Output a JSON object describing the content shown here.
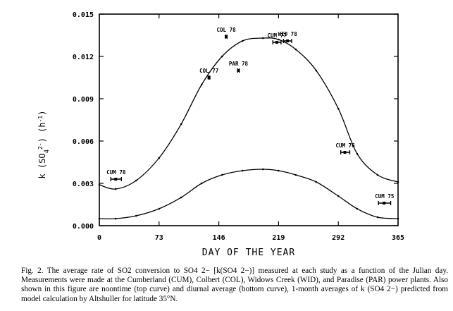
{
  "chart_data": {
    "type": "line",
    "title": "",
    "xlabel": "DAY OF THE YEAR",
    "ylabel": "k (SO4 2-) (h-1)",
    "xlim": [
      0,
      365
    ],
    "ylim": [
      0.0,
      0.015
    ],
    "xticks": [
      0,
      73,
      146,
      219,
      292,
      365
    ],
    "xtick_labels": [
      "0",
      "73",
      "146",
      "219",
      "292",
      "365"
    ],
    "yticks": [
      0.0,
      0.003,
      0.006,
      0.009,
      0.012,
      0.015
    ],
    "ytick_labels": [
      "0.000",
      "0.003",
      "0.006",
      "0.009",
      "0.012",
      "0.015"
    ],
    "grid": false,
    "series": [
      {
        "name": "noontime",
        "style": "curve",
        "x": [
          0,
          20,
          45,
          73,
          100,
          125,
          150,
          175,
          200,
          219,
          240,
          265,
          292,
          315,
          340,
          365
        ],
        "y": [
          0.0029,
          0.0026,
          0.0032,
          0.0048,
          0.0072,
          0.01,
          0.012,
          0.0131,
          0.0133,
          0.0132,
          0.0125,
          0.011,
          0.0083,
          0.0051,
          0.0036,
          0.0031
        ]
      },
      {
        "name": "diurnal",
        "style": "curve",
        "x": [
          0,
          20,
          45,
          73,
          100,
          125,
          150,
          175,
          200,
          219,
          240,
          265,
          292,
          315,
          340,
          365
        ],
        "y": [
          0.0005,
          0.0005,
          0.0007,
          0.0012,
          0.002,
          0.003,
          0.0036,
          0.0039,
          0.004,
          0.0039,
          0.0036,
          0.0031,
          0.0021,
          0.0012,
          0.0006,
          0.0005
        ]
      }
    ],
    "measurements": [
      {
        "label": "COL 78",
        "x": 155,
        "y": 0.0134,
        "x_err": [
          154,
          156
        ]
      },
      {
        "label": "COL 77",
        "x": 134,
        "y": 0.0105,
        "x_err": [
          133,
          135
        ]
      },
      {
        "label": "PAR 78",
        "x": 170,
        "y": 0.011,
        "x_err": [
          169,
          171
        ]
      },
      {
        "label": "WID 78",
        "x": 230,
        "y": 0.0131,
        "x_err": [
          225,
          235
        ]
      },
      {
        "label": "CUM 77",
        "x": 217,
        "y": 0.013,
        "x_err": [
          212,
          222
        ]
      },
      {
        "label": "CUM 78",
        "x": 20,
        "y": 0.0033,
        "x_err": [
          14,
          27
        ]
      },
      {
        "label": "CUM 76",
        "x": 300,
        "y": 0.0052,
        "x_err": [
          295,
          306
        ]
      },
      {
        "label": "CUM 75",
        "x": 348,
        "y": 0.0016,
        "x_err": [
          341,
          356
        ]
      }
    ]
  },
  "caption": {
    "text": "Fig. 2.  The average rate of SO2 conversion to SO4 2− [k(SO4 2−)] measured at each study as a function of the Julian day. Measurements were made at the Cumberland (CUM), Colbert (COL), Widows Creek (WID), and Paradise (PAR) power plants. Also shown in this figure are noontime (top curve) and diurnal average (bottom curve), 1-month averages of k (SO4 2−) predicted from model calculation by Altshuller for latitude 35°N."
  }
}
